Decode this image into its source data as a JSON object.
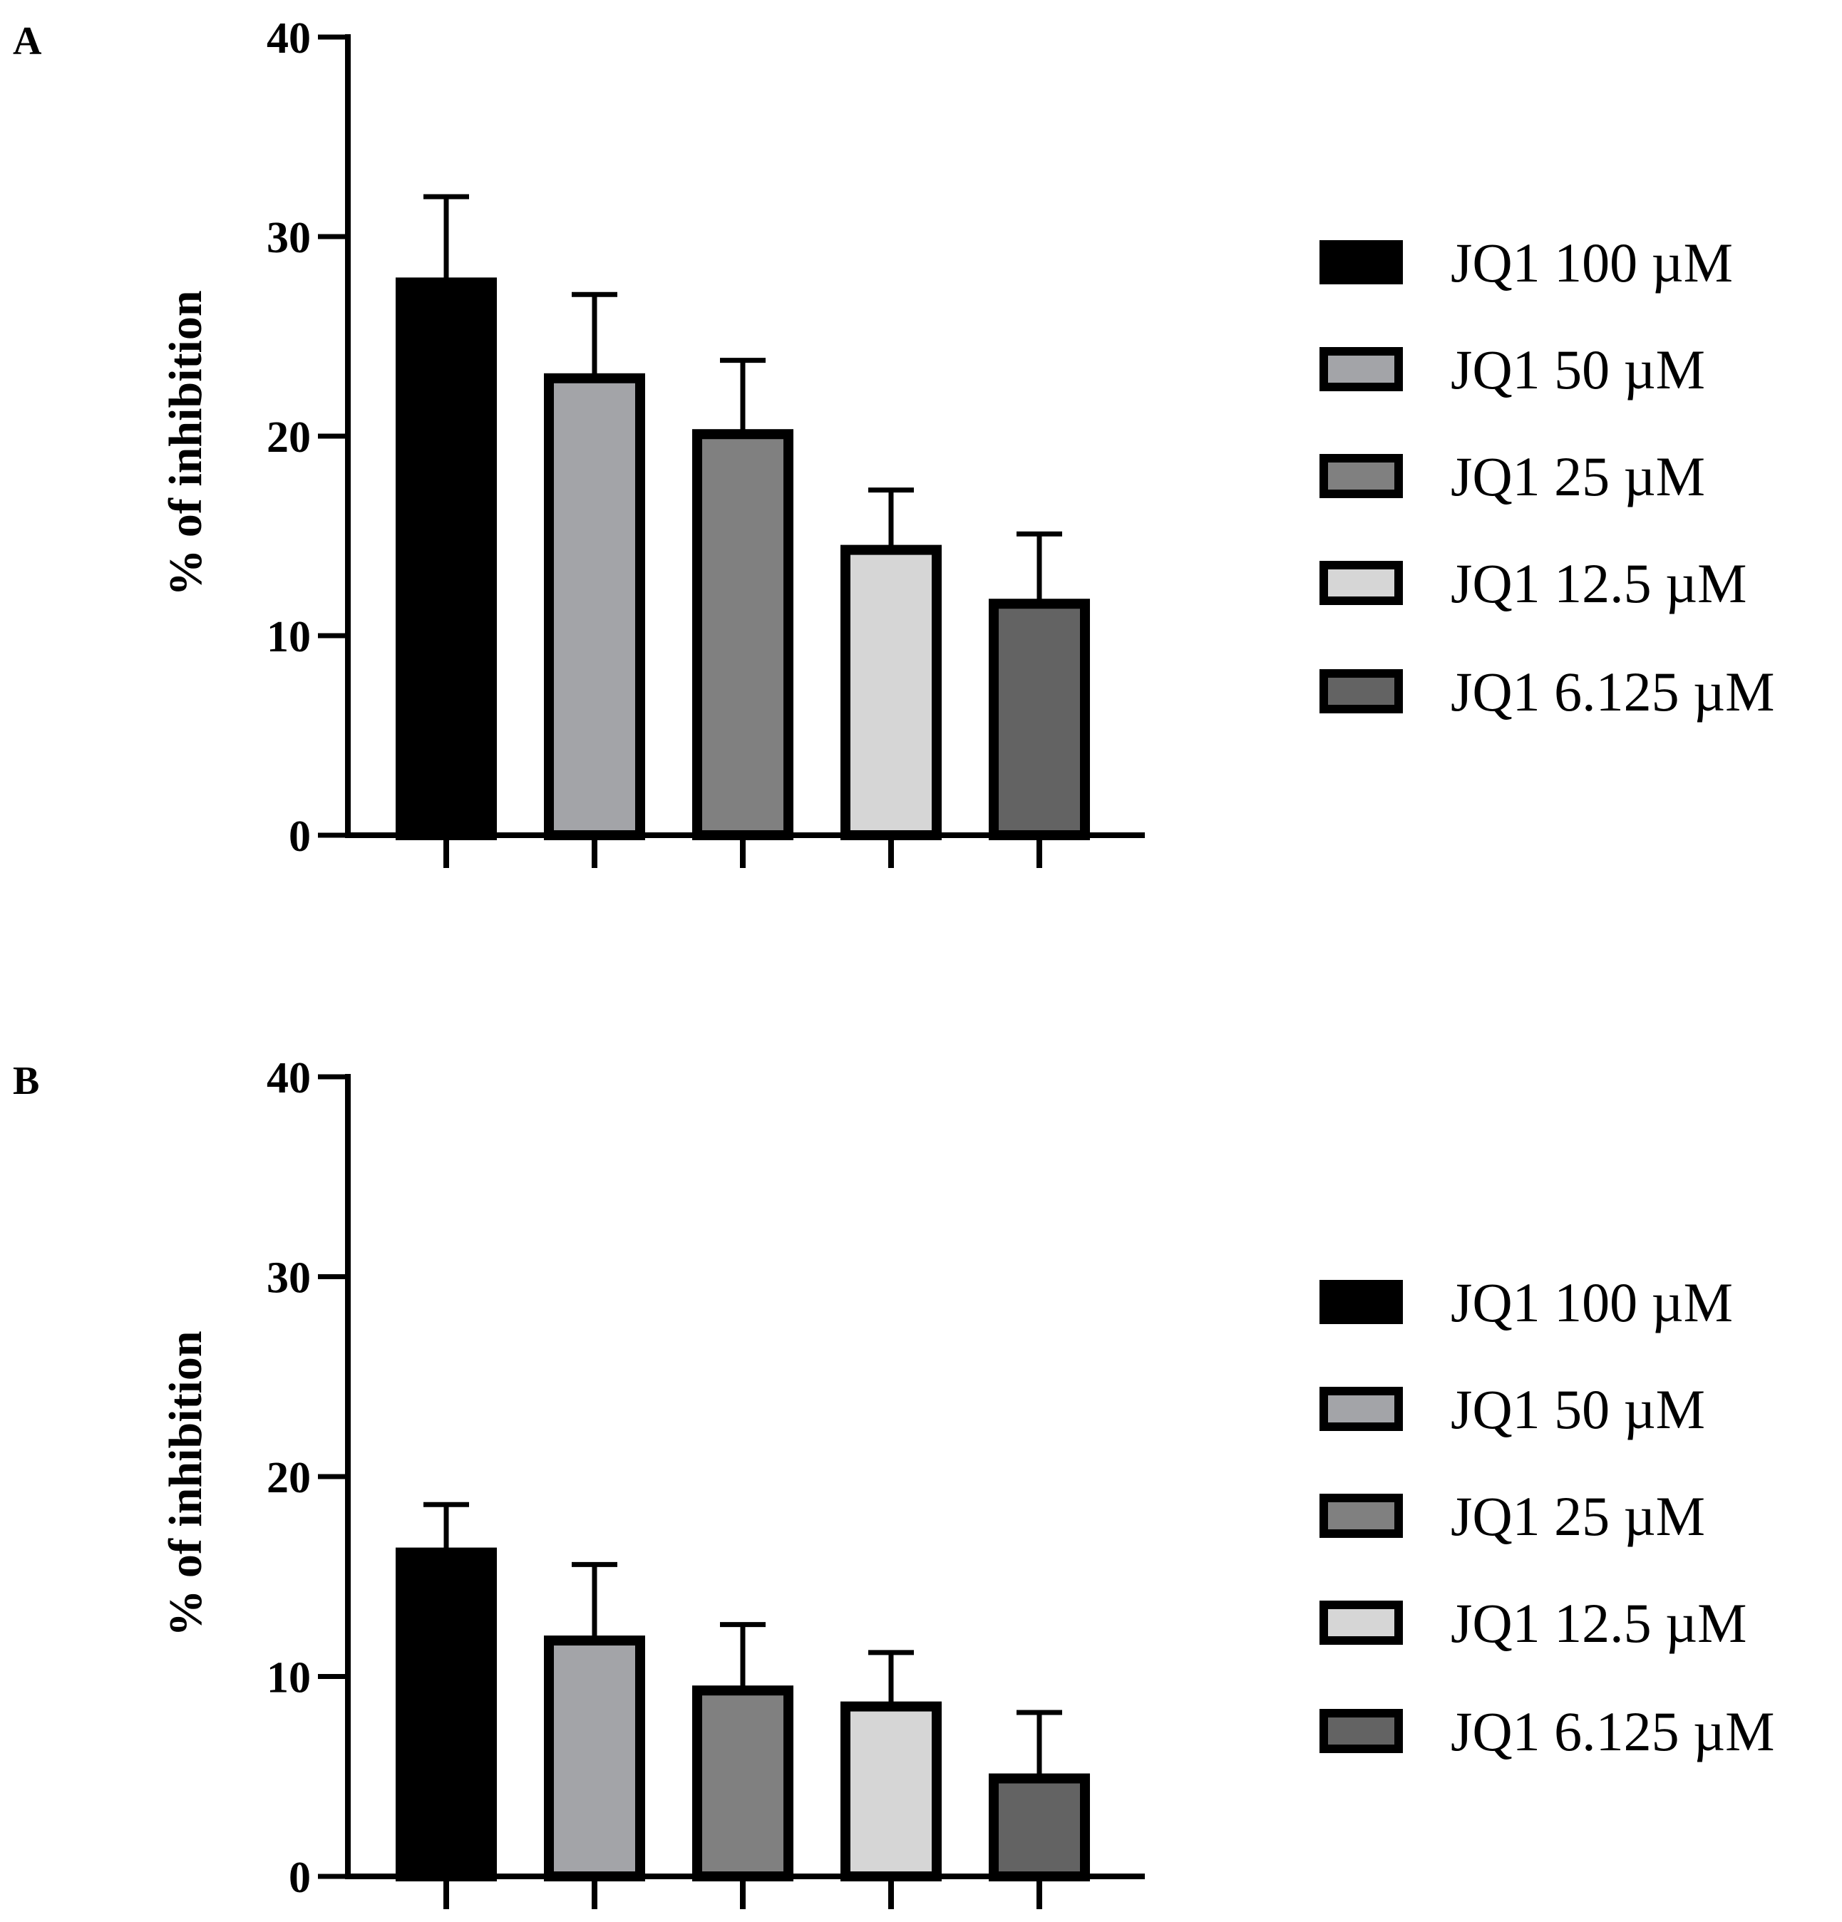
{
  "chart_data": [
    {
      "type": "bar",
      "panel_label": "A",
      "title": "",
      "xlabel": "",
      "ylabel": "% of inhibition",
      "ylim": [
        0,
        40
      ],
      "yticks": [
        "0",
        "10",
        "20",
        "30",
        "40"
      ],
      "legend_position": "right",
      "series": [
        {
          "name": "JQ1 100 µM",
          "value": 27.7,
          "error": 4.3,
          "color": "#000000"
        },
        {
          "name": "JQ1 50 µM",
          "value": 22.9,
          "error": 4.2,
          "color": "#a3a4a8"
        },
        {
          "name": "JQ1 25 µM",
          "value": 20.1,
          "error": 3.7,
          "color": "#808080"
        },
        {
          "name": "JQ1 12.5 µM",
          "value": 14.3,
          "error": 3.0,
          "color": "#d6d6d6"
        },
        {
          "name": "JQ1 6.125 µM",
          "value": 11.6,
          "error": 3.5,
          "color": "#636363"
        }
      ]
    },
    {
      "type": "bar",
      "panel_label": "B",
      "title": "",
      "xlabel": "",
      "ylabel": "% of inhibition",
      "ylim": [
        0,
        40
      ],
      "yticks": [
        "0",
        "10",
        "20",
        "30",
        "40"
      ],
      "legend_position": "right",
      "series": [
        {
          "name": "JQ1 100 µM",
          "value": 16.2,
          "error": 2.4,
          "color": "#000000"
        },
        {
          "name": "JQ1 50 µM",
          "value": 11.8,
          "error": 3.8,
          "color": "#a3a4a8"
        },
        {
          "name": "JQ1 25 µM",
          "value": 9.3,
          "error": 3.3,
          "color": "#808080"
        },
        {
          "name": "JQ1 12.5 µM",
          "value": 8.5,
          "error": 2.7,
          "color": "#d6d6d6"
        },
        {
          "name": "JQ1 6.125 µM",
          "value": 4.9,
          "error": 3.3,
          "color": "#636363"
        }
      ]
    }
  ]
}
